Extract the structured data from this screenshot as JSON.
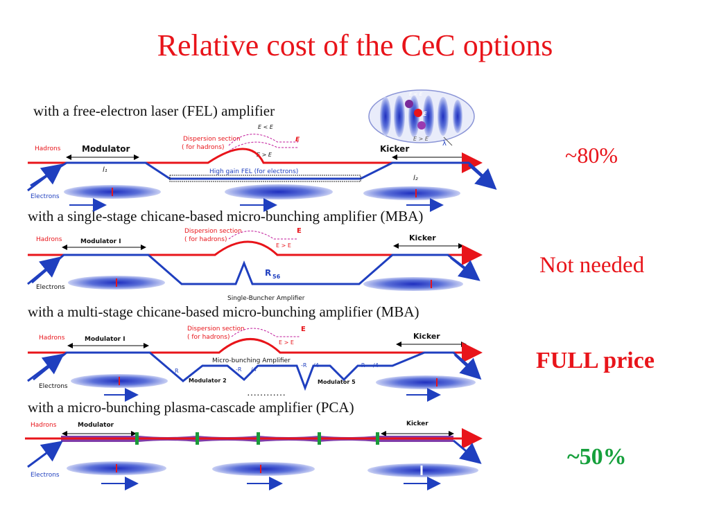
{
  "title": "Relative  cost of the CeC options",
  "colors": {
    "title": "#e8141a",
    "hadron": "#e8141a",
    "electron": "#1f3fbf",
    "magnet": "#1a9a3a",
    "cost_green": "#16a03c",
    "cost_red": "#e8141a"
  },
  "options": [
    {
      "label": "with a free-electron laser (FEL) amplifier",
      "cost": "~80%",
      "hadrons": "Hadrons",
      "electrons": "Electrons",
      "modulator": "Modulator",
      "kicker": "Kicker",
      "dispersion": "Dispersion section",
      "dispersion_sub": "( for hadrons)",
      "fel": "High gain FEL (for electrons)",
      "l1": "l₁",
      "l2": "l₂",
      "e_less": "E < E",
      "e_greater": "E > E",
      "e_h": "E",
      "lambda": "λ"
    },
    {
      "label": "with a single-stage chicane-based micro-bunching amplifier (MBA)",
      "cost": "Not needed",
      "hadrons": "Hadrons",
      "electrons": "Electrons",
      "modulator": "Modulator I",
      "kicker": "Kicker",
      "dispersion": "Dispersion section",
      "dispersion_sub": "( for hadrons)",
      "r56": "R",
      "amplifier": "Single-Buncher Amplifier",
      "e_h": "E",
      "e_greater": "E > E"
    },
    {
      "label": "with a multi-stage chicane-based micro-bunching amplifier (MBA)",
      "cost": "FULL price",
      "hadrons": "Hadrons",
      "electrons": "Electrons",
      "modulator": "Modulator I",
      "kicker": "Kicker",
      "dispersion": "Dispersion section",
      "dispersion_sub": "( for hadrons)",
      "amplifier": "Micro-bunching Amplifier",
      "mod2": "Modulator 2",
      "mod5": "Modulator 5",
      "r56": "R",
      "r56_quarter": "-R",
      "r56_frac": "/4",
      "dots": "…………",
      "e_h": "E",
      "e_greater": "E > E"
    },
    {
      "label": "with a micro-bunching plasma-cascade amplifier (PCA)",
      "cost": "~50%",
      "hadrons": "Hadrons",
      "electrons": "Electrons",
      "modulator": "Modulator",
      "kicker": "Kicker"
    }
  ],
  "subscripts": {
    "h": "h",
    "r56": "56"
  }
}
